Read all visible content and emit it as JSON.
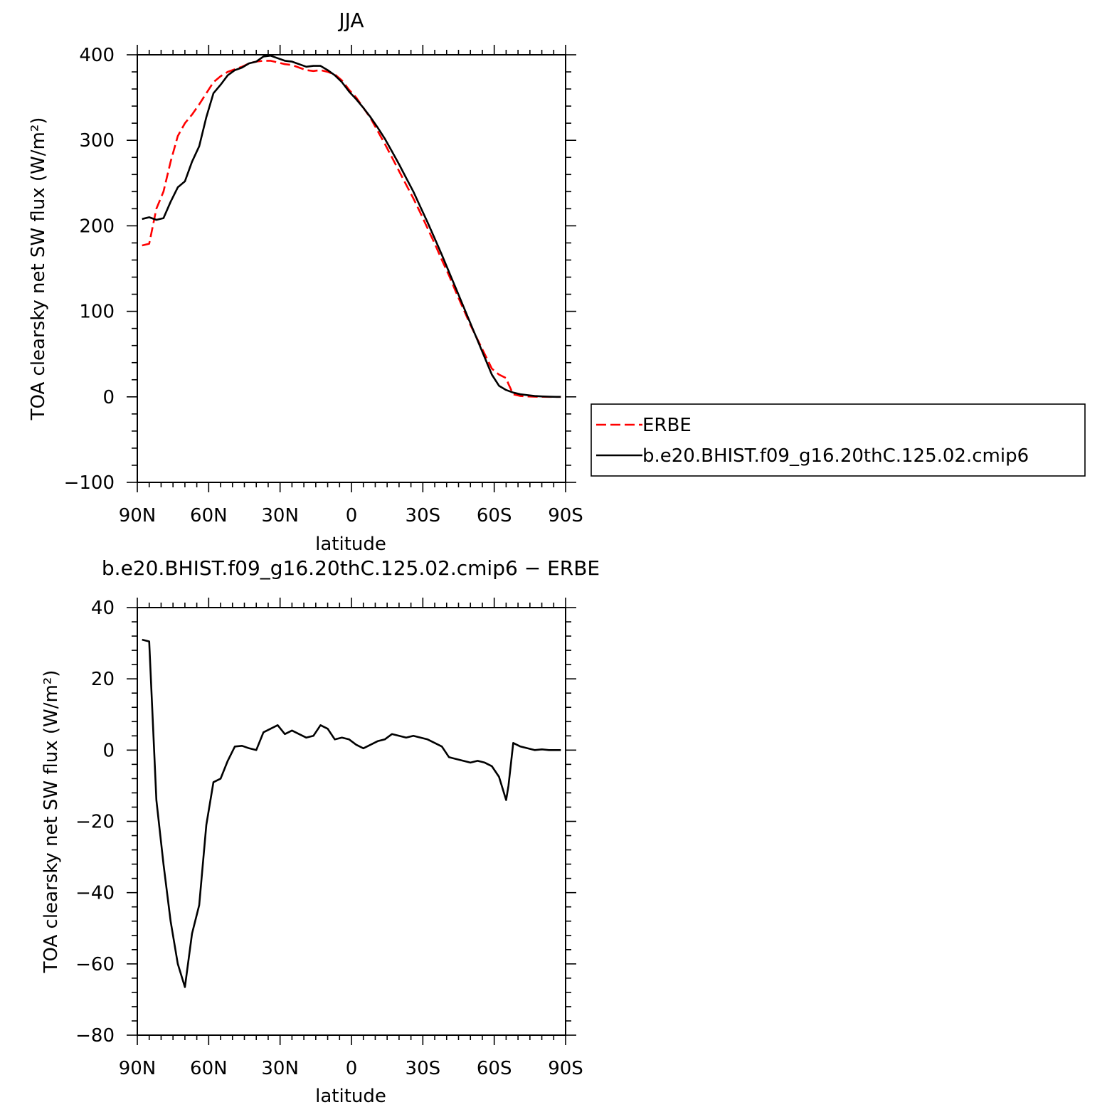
{
  "chart_data": [
    {
      "type": "line",
      "title": "JJA",
      "xlabel": "latitude",
      "ylabel": "TOA clearsky net SW flux (W/m²)",
      "x_ticks": [
        {
          "value": 90,
          "label": "90N"
        },
        {
          "value": 60,
          "label": "60N"
        },
        {
          "value": 30,
          "label": "30N"
        },
        {
          "value": 0,
          "label": "0"
        },
        {
          "value": -30,
          "label": "30S"
        },
        {
          "value": -60,
          "label": "60S"
        },
        {
          "value": -90,
          "label": "90S"
        }
      ],
      "y_ticks": [
        {
          "value": 400,
          "label": "400"
        },
        {
          "value": 300,
          "label": "300"
        },
        {
          "value": 200,
          "label": "200"
        },
        {
          "value": 100,
          "label": "100"
        },
        {
          "value": 0,
          "label": "0"
        },
        {
          "value": -100,
          "label": "−100"
        }
      ],
      "xlim": [
        90,
        -90
      ],
      "ylim": [
        -100,
        400
      ],
      "grid": false,
      "legend_position": "right",
      "series": [
        {
          "name": "ERBE",
          "color": "#ff0000",
          "dash": "dashed",
          "x": [
            88,
            85,
            82,
            79,
            76,
            73,
            70,
            67,
            64,
            61,
            58,
            55,
            52,
            49,
            46,
            43,
            40,
            37,
            34,
            31,
            28,
            25,
            22,
            19,
            16,
            13,
            10,
            7,
            4,
            1,
            -2,
            -5,
            -8,
            -11,
            -14,
            -17,
            -20,
            -23,
            -26,
            -29,
            -32,
            -35,
            -38,
            -41,
            -44,
            -47,
            -50,
            -53,
            -56,
            -59,
            -62,
            -65,
            -66,
            -68,
            -71,
            -74,
            -77,
            -80,
            -83,
            -86,
            -88
          ],
          "y": [
            177,
            179,
            220,
            240,
            275,
            305,
            320,
            330,
            342,
            355,
            368,
            375,
            380,
            383,
            386,
            390,
            392,
            393,
            393,
            391,
            389,
            388,
            385,
            382,
            381,
            382,
            380,
            377,
            370,
            359,
            350,
            338,
            326,
            311,
            296,
            280,
            264,
            248,
            232,
            215,
            197,
            179,
            160,
            142,
            122,
            103,
            84,
            67,
            50,
            33,
            26,
            22,
            15,
            3,
            1,
            0.5,
            0.2,
            0.1,
            0,
            0,
            0
          ]
        },
        {
          "name": "b.e20.BHIST.f09_g16.20thC.125.02.cmip6",
          "color": "#000000",
          "dash": "solid",
          "x": [
            88,
            85,
            82,
            79,
            76,
            73,
            70,
            67,
            64,
            61,
            58,
            55,
            52,
            49,
            46,
            43,
            40,
            37,
            34,
            31,
            28,
            25,
            22,
            19,
            16,
            13,
            10,
            7,
            4,
            1,
            -2,
            -5,
            -8,
            -11,
            -14,
            -17,
            -20,
            -23,
            -26,
            -29,
            -32,
            -35,
            -38,
            -41,
            -44,
            -47,
            -50,
            -53,
            -56,
            -59,
            -62,
            -65,
            -68,
            -71,
            -74,
            -77,
            -80,
            -83,
            -86,
            -88
          ],
          "y": [
            208,
            210,
            207,
            209,
            228,
            245,
            252,
            275,
            293,
            327,
            355,
            365,
            376,
            382,
            385,
            390,
            392,
            398,
            399,
            396,
            393,
            392,
            389,
            386,
            387,
            387,
            382,
            376,
            368,
            357,
            348,
            338,
            327,
            315,
            302,
            287,
            272,
            256,
            240,
            222,
            204,
            185,
            166,
            146,
            126,
            106,
            86,
            66,
            46,
            26,
            13,
            8,
            5,
            3,
            2,
            1,
            0.5,
            0.2,
            0,
            0
          ]
        }
      ]
    },
    {
      "type": "line",
      "title": "b.e20.BHIST.f09_g16.20thC.125.02.cmip6 − ERBE",
      "xlabel": "latitude",
      "ylabel": "TOA clearsky net SW flux (W/m²)",
      "x_ticks": [
        {
          "value": 90,
          "label": "90N"
        },
        {
          "value": 60,
          "label": "60N"
        },
        {
          "value": 30,
          "label": "30N"
        },
        {
          "value": 0,
          "label": "0"
        },
        {
          "value": -30,
          "label": "30S"
        },
        {
          "value": -60,
          "label": "60S"
        },
        {
          "value": -90,
          "label": "90S"
        }
      ],
      "y_ticks": [
        {
          "value": 40,
          "label": "40"
        },
        {
          "value": 20,
          "label": "20"
        },
        {
          "value": 0,
          "label": "0"
        },
        {
          "value": -20,
          "label": "−20"
        },
        {
          "value": -40,
          "label": "−40"
        },
        {
          "value": -60,
          "label": "−60"
        },
        {
          "value": -80,
          "label": "−80"
        }
      ],
      "xlim": [
        90,
        -90
      ],
      "ylim": [
        -80,
        40
      ],
      "grid": false,
      "series": [
        {
          "color": "#000000",
          "dash": "solid",
          "x": [
            88,
            85,
            82,
            79,
            76,
            73,
            70,
            67,
            64,
            61,
            58,
            55,
            52,
            49,
            46,
            43,
            40,
            37,
            34,
            31,
            28,
            25,
            22,
            19,
            16,
            13,
            10,
            7,
            4,
            1,
            -2,
            -5,
            -8,
            -11,
            -14,
            -17,
            -20,
            -23,
            -26,
            -29,
            -32,
            -35,
            -38,
            -41,
            -44,
            -47,
            -50,
            -53,
            -56,
            -59,
            -62,
            -65,
            -66,
            -68,
            -71,
            -74,
            -77,
            -80,
            -83,
            -86,
            -88
          ],
          "y": [
            31,
            30.5,
            -14,
            -32,
            -48,
            -60,
            -66.5,
            -51.5,
            -43.5,
            -21,
            -9,
            -8,
            -3,
            1,
            1.2,
            0.5,
            0,
            5,
            6,
            7,
            4.5,
            5.5,
            4.5,
            3.5,
            4,
            7,
            6,
            3,
            3.5,
            3,
            1.5,
            0.5,
            1.5,
            2.5,
            3,
            4.5,
            4,
            3.5,
            4,
            3.5,
            3,
            2,
            1,
            -2,
            -2.5,
            -3,
            -3.5,
            -3,
            -3.5,
            -4.5,
            -7.5,
            -14,
            -10,
            2,
            1,
            0.5,
            0,
            0.2,
            0,
            0,
            0
          ]
        }
      ]
    }
  ]
}
